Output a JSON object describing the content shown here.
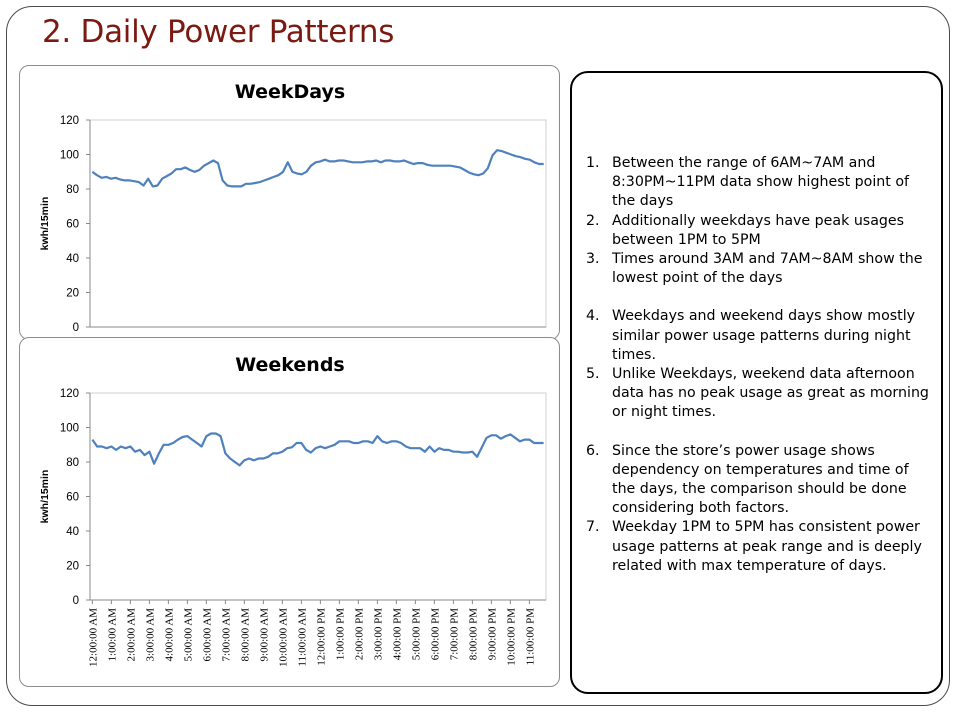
{
  "slide": {
    "title": "2. Daily Power Patterns"
  },
  "notes": [
    {
      "num": "1.",
      "text": "Between the range of 6AM~7AM and 8:30PM~11PM data show highest point of the days",
      "gap_before": false
    },
    {
      "num": "2.",
      "text": "Additionally weekdays have peak usages between 1PM to 5PM",
      "gap_before": false
    },
    {
      "num": "3.",
      "text": "Times around 3AM and 7AM~8AM show the lowest point of the days",
      "gap_before": false
    },
    {
      "num": "4.",
      "text": "Weekdays and weekend days show mostly similar power usage patterns during night times.",
      "gap_before": true
    },
    {
      "num": "5.",
      "text": "Unlike Weekdays, weekend data afternoon data has no peak usage as great as morning or night times.",
      "gap_before": false
    },
    {
      "num": "6.",
      "text": " Since the store’s power usage shows dependency on temperatures and time of the days, the comparison should be done considering both factors.",
      "gap_before": true
    },
    {
      "num": "7.",
      "text": "Weekday 1PM to 5PM has consistent power usage patterns at peak range and is deeply related with max temperature of days.",
      "gap_before": false
    }
  ],
  "chart_data": [
    {
      "type": "line",
      "title": "WeekDays",
      "ylabel": "kwh/15min",
      "xlabel": "",
      "ylim": [
        0,
        120
      ],
      "yticks": [
        0,
        20,
        40,
        60,
        80,
        100,
        120
      ],
      "xticks_visible": false,
      "grid": false,
      "line_color": "#4f81bd",
      "series": [
        {
          "values": [
            90,
            88,
            86.5,
            87,
            86,
            86.5,
            85.5,
            85,
            85,
            84.5,
            84,
            82,
            86,
            81.5,
            82,
            86,
            87.5,
            89,
            91.5,
            91.5,
            92.5,
            91,
            90,
            91,
            93.5,
            95,
            96.5,
            95,
            85,
            82,
            81.5,
            81.5,
            81.5,
            83,
            83,
            83.5,
            84,
            85,
            86,
            87,
            88,
            90,
            95.5,
            90,
            89,
            88.5,
            90,
            93.5,
            95.5,
            96,
            97,
            96,
            96,
            96.5,
            96.5,
            96,
            95.5,
            95.5,
            95.5,
            96,
            96,
            96.5,
            95.5,
            96.5,
            96.5,
            96,
            96,
            96.5,
            95.5,
            94.5,
            95,
            95,
            94,
            93.5,
            93.5,
            93.5,
            93.5,
            93.5,
            93,
            92.5,
            91,
            89.5,
            88.5,
            88,
            89,
            92,
            99.5,
            102.5,
            102,
            101,
            100,
            99,
            98.5,
            97.5,
            97,
            95.5,
            94.5,
            94.5
          ]
        }
      ]
    },
    {
      "type": "line",
      "title": "Weekends",
      "ylabel": "kwh/15min",
      "xlabel": "",
      "ylim": [
        0,
        120
      ],
      "yticks": [
        0,
        20,
        40,
        60,
        80,
        100,
        120
      ],
      "grid": false,
      "line_color": "#4f81bd",
      "x_tick_labels": [
        "12:00:00 AM",
        "1:00:00 AM",
        "2:00:00 AM",
        "3:00:00 AM",
        "4:00:00 AM",
        "5:00:00 AM",
        "6:00:00 AM",
        "7:00:00 AM",
        "8:00:00 AM",
        "9:00:00 AM",
        "10:00:00 AM",
        "11:00:00 AM",
        "12:00:00 PM",
        "1:00:00 PM",
        "2:00:00 PM",
        "3:00:00 PM",
        "4:00:00 PM",
        "5:00:00 PM",
        "6:00:00 PM",
        "7:00:00 PM",
        "8:00:00 PM",
        "9:00:00 PM",
        "10:00:00 PM",
        "11:00:00 PM"
      ],
      "series": [
        {
          "values": [
            93,
            89,
            89,
            88,
            89,
            87,
            89,
            88,
            89,
            86,
            87,
            84,
            86,
            79,
            85,
            90,
            90,
            91,
            93,
            94.5,
            95,
            93,
            91,
            89,
            95,
            96.5,
            96.5,
            95,
            85,
            82,
            80,
            78,
            81,
            82,
            81,
            82,
            82,
            83,
            85,
            85,
            86,
            88,
            88.5,
            91,
            91,
            87,
            85.5,
            88,
            89,
            88,
            89,
            90,
            92,
            92,
            92,
            91,
            91,
            92,
            92,
            91,
            95,
            92,
            91,
            92,
            92,
            91,
            89,
            88,
            88,
            88,
            86,
            89,
            86,
            88,
            87,
            87,
            86,
            86,
            85.5,
            85.5,
            86,
            83,
            88.5,
            94,
            95.5,
            95.5,
            93.5,
            95,
            96,
            94,
            92,
            93,
            93,
            91,
            91,
            91
          ]
        }
      ]
    }
  ]
}
